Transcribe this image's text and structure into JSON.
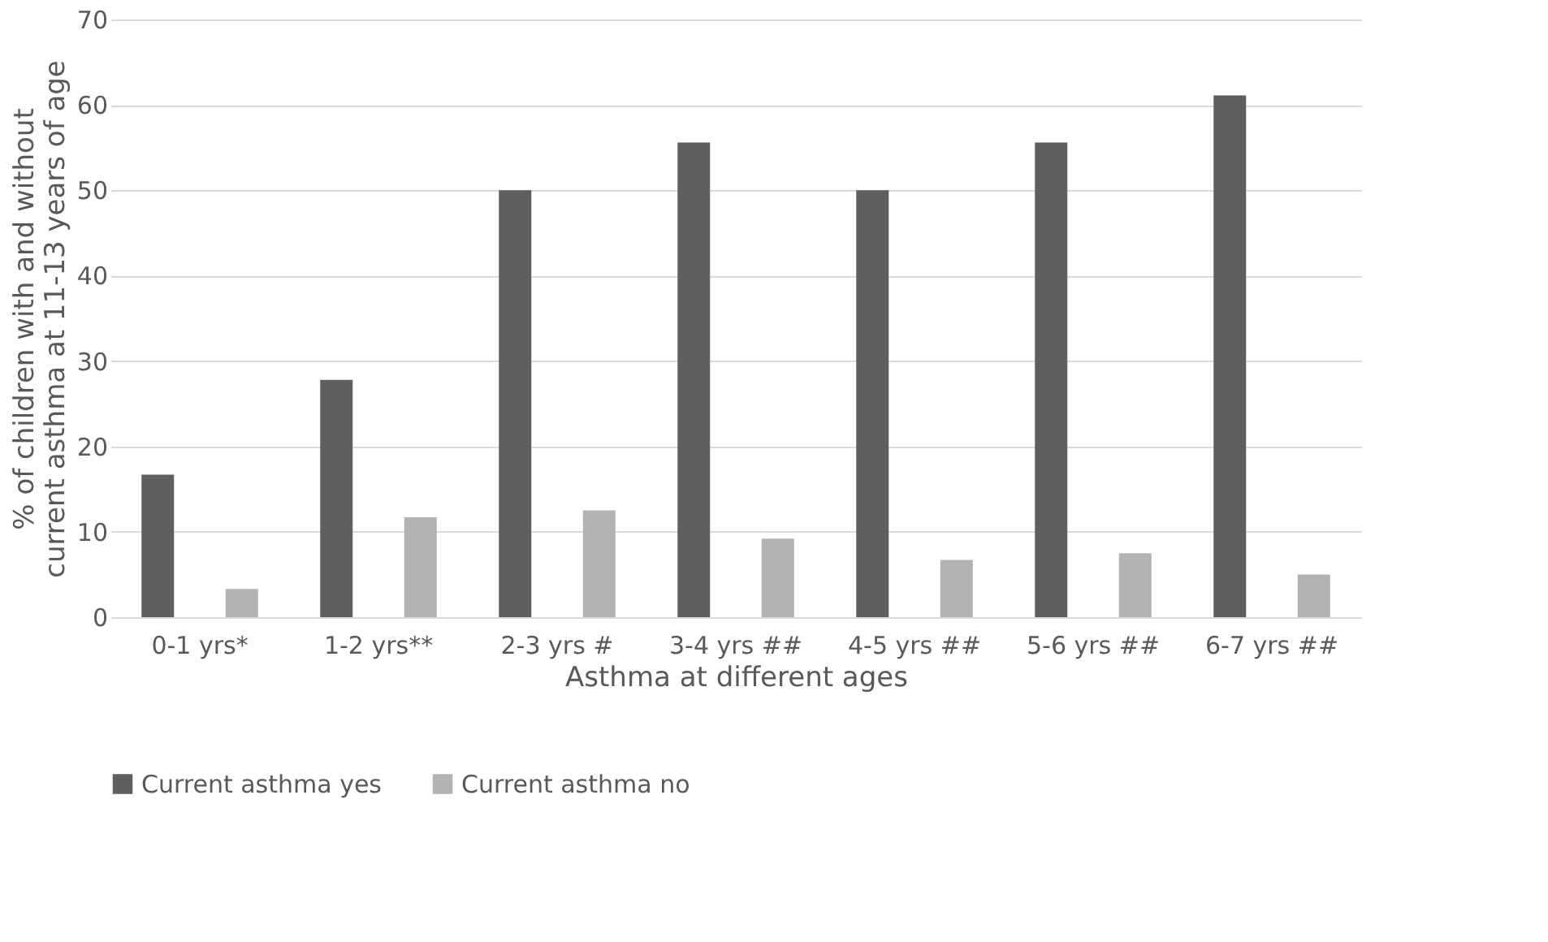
{
  "chart_data": {
    "type": "bar",
    "xlabel": "Asthma at different ages",
    "ylabel": "% of children with and without current asthma at 11-13 years of age",
    "categories": [
      "0-1 yrs*",
      "1-2 yrs**",
      "2-3 yrs #",
      "3-4 yrs ##",
      "4-5 yrs ##",
      "5-6 yrs ##",
      "6-7 yrs ##"
    ],
    "series": [
      {
        "name": "Current asthma yes",
        "color": "#5f5f5f",
        "values": [
          16.7,
          27.8,
          50,
          55.6,
          50,
          55.6,
          61.1
        ]
      },
      {
        "name": "Current asthma no",
        "color": "#b2b2b2",
        "values": [
          3.3,
          11.7,
          12.5,
          9.2,
          6.7,
          7.5,
          5.0
        ]
      }
    ],
    "ylim": [
      0,
      70
    ],
    "yticks": [
      0,
      10,
      20,
      30,
      40,
      50,
      60,
      70
    ],
    "grid": "y",
    "legend": "bottom"
  }
}
